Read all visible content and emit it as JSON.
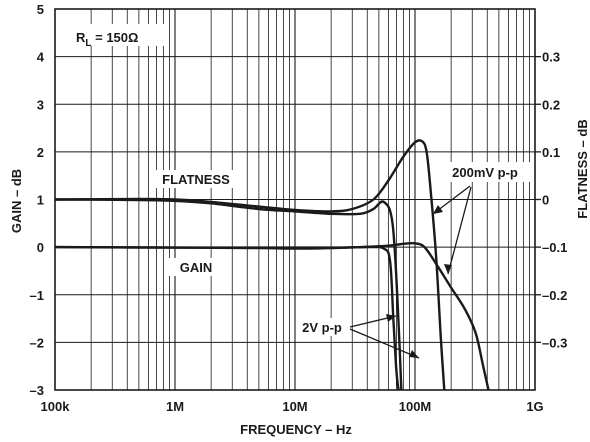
{
  "chart_data": {
    "type": "line",
    "xscale": "log",
    "xlim": [
      100000,
      1000000000
    ],
    "ylim_left": [
      -3,
      5
    ],
    "ylim_right": [
      -0.4,
      0.4
    ],
    "grid": true,
    "xlabel": "FREQUENCY – Hz",
    "ylabel_left": "GAIN – dB",
    "ylabel_right": "FLATNESS – dB",
    "x_ticks": [
      {
        "value": 100000,
        "label": "100k"
      },
      {
        "value": 1000000,
        "label": "1M"
      },
      {
        "value": 10000000,
        "label": "10M"
      },
      {
        "value": 100000000,
        "label": "100M"
      },
      {
        "value": 1000000000,
        "label": "1G"
      }
    ],
    "y_ticks_left": [
      {
        "value": 5,
        "label": "5"
      },
      {
        "value": 4,
        "label": "4"
      },
      {
        "value": 3,
        "label": "3"
      },
      {
        "value": 2,
        "label": "2"
      },
      {
        "value": 1,
        "label": "1"
      },
      {
        "value": 0,
        "label": "0"
      },
      {
        "value": -1,
        "label": "–1"
      },
      {
        "value": -2,
        "label": "–2"
      },
      {
        "value": -3,
        "label": "–3"
      }
    ],
    "y_ticks_right": [
      {
        "value": 0.3,
        "label": "0.3"
      },
      {
        "value": 0.2,
        "label": "0.2"
      },
      {
        "value": 0.1,
        "label": "0.1"
      },
      {
        "value": 0,
        "label": "0"
      },
      {
        "value": -0.1,
        "label": "–0.1"
      },
      {
        "value": -0.2,
        "label": "–0.2"
      },
      {
        "value": -0.3,
        "label": "–0.3"
      }
    ],
    "annotations": {
      "rl": "R",
      "rl_sub": "L",
      "rl_value": " = 150Ω",
      "flatness": "FLATNESS",
      "gain": "GAIN",
      "mv": "200mV p-p",
      "v2": "2V p-p"
    },
    "series": [
      {
        "axis": "right",
        "x": [
          100000,
          500000,
          1000000,
          2000000,
          5000000,
          10000000,
          20000000,
          35000000,
          45000000,
          55000000,
          65000000,
          72000000,
          78000000
        ],
        "y": [
          0,
          -0.001,
          -0.003,
          -0.008,
          -0.02,
          -0.025,
          -0.03,
          -0.03,
          -0.02,
          -0.005,
          -0.05,
          -0.23,
          -0.44
        ]
      },
      {
        "axis": "right",
        "x": [
          100000,
          500000,
          1000000,
          2000000,
          5000000,
          10000000,
          20000000,
          30000000,
          45000000,
          60000000,
          80000000,
          100000000,
          115000000,
          125000000,
          135000000,
          150000000,
          165000000,
          180000000
        ],
        "y": [
          0,
          0.001,
          0.0,
          -0.005,
          -0.015,
          -0.022,
          -0.025,
          -0.02,
          0.0,
          0.04,
          0.09,
          0.12,
          0.122,
          0.1,
          0.02,
          -0.12,
          -0.3,
          -0.44
        ]
      },
      {
        "axis": "left",
        "x": [
          100000,
          1000000,
          5000000,
          10000000,
          20000000,
          40000000,
          55000000,
          62000000,
          66000000,
          70000000,
          73000000
        ],
        "y": [
          0,
          -0.01,
          -0.02,
          -0.03,
          -0.02,
          0.0,
          -0.03,
          -0.3,
          -1.5,
          -2.6,
          -3.0
        ]
      },
      {
        "axis": "left",
        "x": [
          100000,
          1000000,
          5000000,
          10000000,
          30000000,
          60000000,
          80000000,
          100000000,
          120000000,
          150000000,
          200000000,
          260000000,
          320000000,
          370000000,
          410000000
        ],
        "y": [
          0,
          -0.01,
          -0.01,
          -0.01,
          -0.005,
          0.03,
          0.07,
          0.08,
          0.0,
          -0.35,
          -0.85,
          -1.3,
          -1.8,
          -2.5,
          -3.0
        ]
      }
    ]
  }
}
